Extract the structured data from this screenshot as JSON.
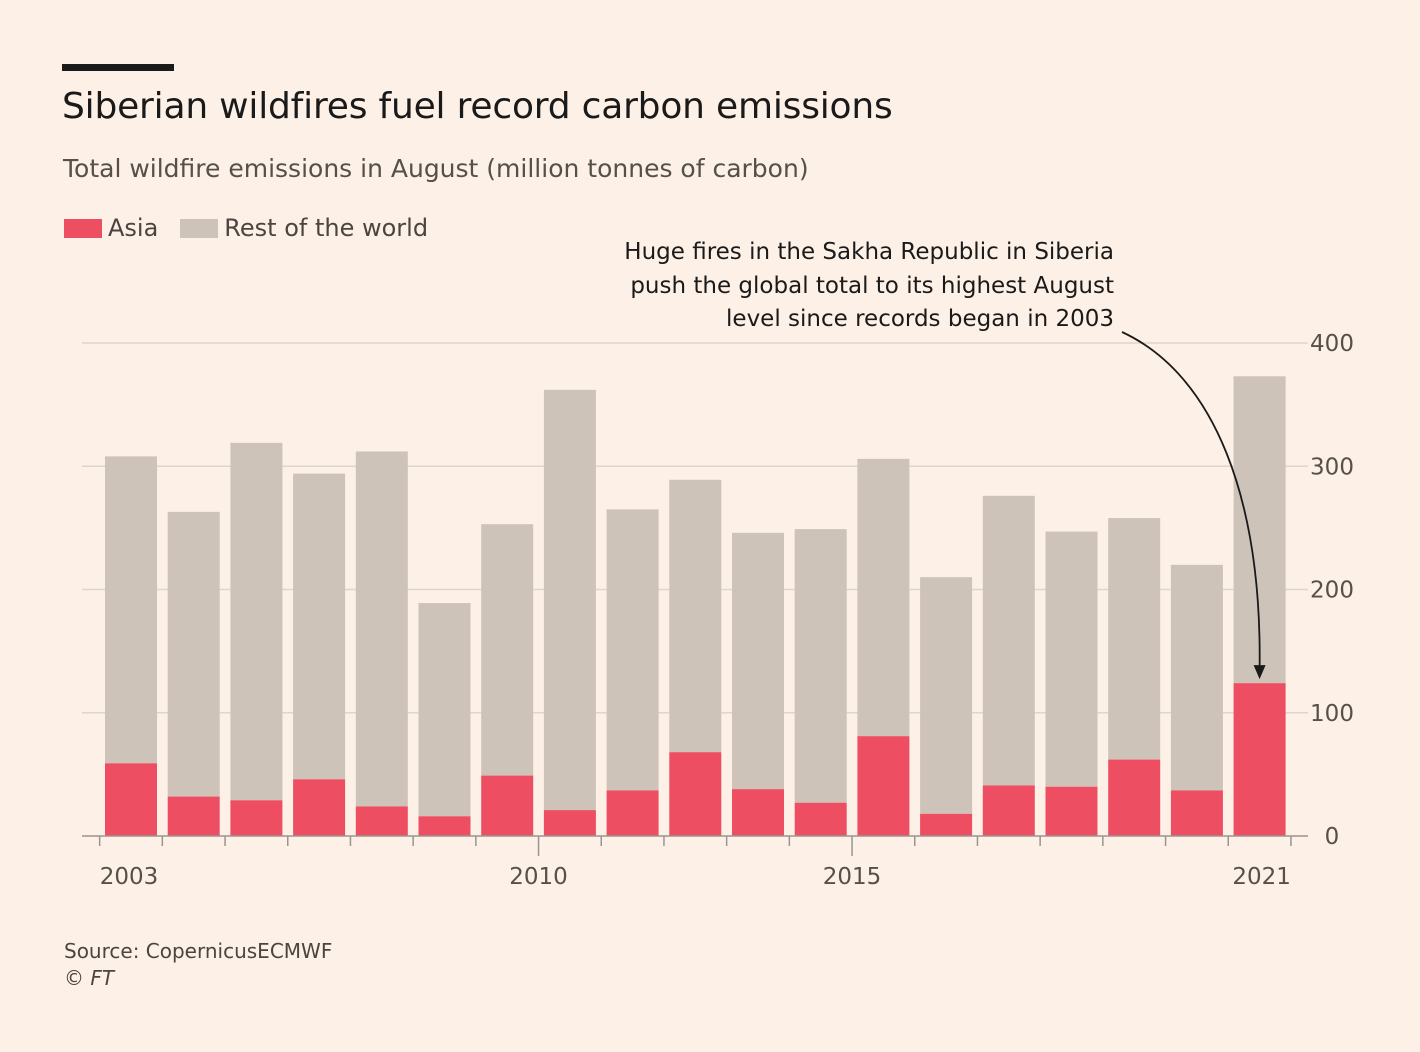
{
  "title": "Siberian wildfires fuel record carbon emissions",
  "subtitle": "Total wildfire emissions in August (million tonnes of carbon)",
  "legend": [
    {
      "label": "Asia",
      "color": "#EE4E62"
    },
    {
      "label": "Rest of the world",
      "color": "#CEC3B9"
    }
  ],
  "annotation": {
    "lines": [
      "Huge fires in the Sakha Republic in Siberia",
      "push the global total to its highest August",
      "level since records began in 2003"
    ]
  },
  "source": {
    "text": "Source: CopernicusECMWF",
    "copyright": "© FT"
  },
  "colors": {
    "asia": "#EE4E62",
    "rest": "#CEC3B9",
    "grid": "#DED6CE",
    "axis": "#9a9590",
    "background": "#FDF0E6"
  },
  "chart_data": {
    "type": "bar",
    "stacked": true,
    "title": "Siberian wildfires fuel record carbon emissions",
    "ylabel": "Total wildfire emissions in August (million tonnes of carbon)",
    "xlabel": "",
    "ylim": [
      0,
      400
    ],
    "yticks": [
      0,
      100,
      200,
      300,
      400
    ],
    "y_axis_side": "right",
    "categories": [
      "2003",
      "2004",
      "2005",
      "2006",
      "2007",
      "2008",
      "2009",
      "2010",
      "2011",
      "2012",
      "2013",
      "2014",
      "2015",
      "2016",
      "2017",
      "2018",
      "2019",
      "2020",
      "2021"
    ],
    "xtick_labels": [
      {
        "year": "2003",
        "label": "2003"
      },
      {
        "year": "2010",
        "label": "2010"
      },
      {
        "year": "2015",
        "label": "2015"
      },
      {
        "year": "2021",
        "label": "2021"
      }
    ],
    "series": [
      {
        "name": "Asia",
        "values": [
          59,
          32,
          29,
          46,
          24,
          16,
          49,
          21,
          37,
          68,
          38,
          27,
          81,
          18,
          41,
          40,
          62,
          37,
          124
        ]
      },
      {
        "name": "Rest of the world",
        "values": [
          249,
          231,
          290,
          248,
          288,
          173,
          204,
          341,
          228,
          221,
          208,
          222,
          225,
          192,
          235,
          207,
          196,
          183,
          249
        ]
      }
    ],
    "totals": [
      308,
      263,
      319,
      294,
      312,
      189,
      253,
      362,
      265,
      289,
      246,
      249,
      306,
      210,
      276,
      247,
      258,
      220,
      373
    ],
    "grid": true
  }
}
